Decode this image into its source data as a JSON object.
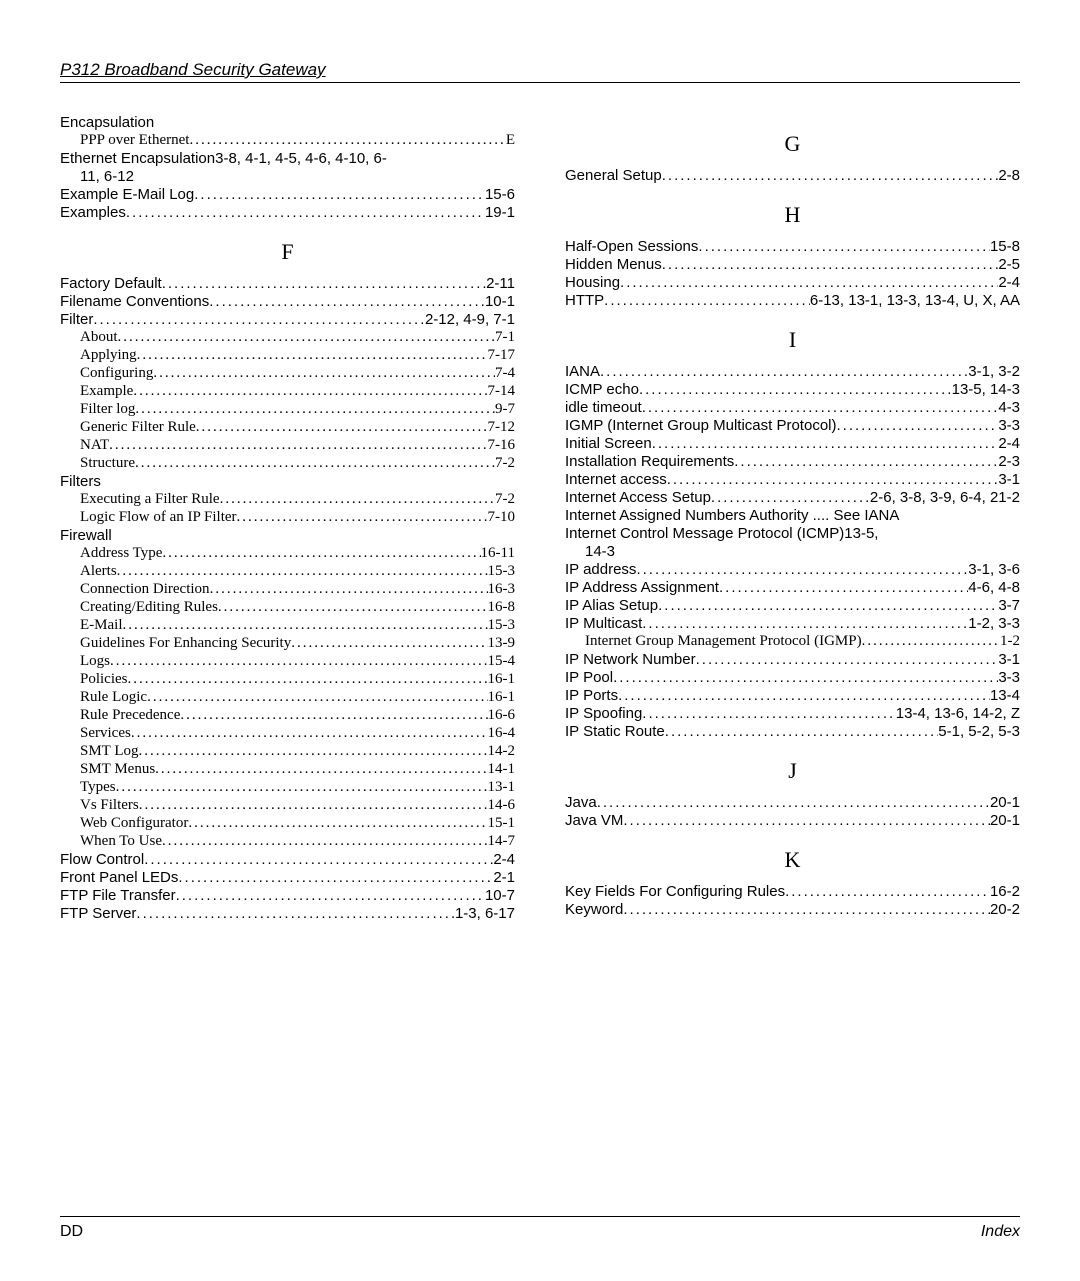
{
  "header": "P312  Broadband Security Gateway",
  "footer_left": "DD",
  "footer_right": "Index",
  "left_col": [
    {
      "type": "plain",
      "text": "Encapsulation"
    },
    {
      "type": "entry",
      "sub": true,
      "label": "PPP over Ethernet",
      "page": "E"
    },
    {
      "type": "plain",
      "text": "Ethernet Encapsulation3-8, 4-1, 4-5, 4-6, 4-10, 6-"
    },
    {
      "type": "plain",
      "sub": true,
      "text": "11, 6-12"
    },
    {
      "type": "entry",
      "label": "Example E-Mail Log",
      "page": "15-6"
    },
    {
      "type": "entry",
      "label": "Examples",
      "page": "19-1"
    },
    {
      "type": "letter",
      "text": "F"
    },
    {
      "type": "entry",
      "label": "Factory Default",
      "page": "2-11"
    },
    {
      "type": "entry",
      "label": "Filename Conventions",
      "page": "10-1"
    },
    {
      "type": "entry",
      "label": "Filter",
      "page": " 2-12, 4-9, 7-1"
    },
    {
      "type": "entry",
      "sub": true,
      "label": "About",
      "page": "7-1"
    },
    {
      "type": "entry",
      "sub": true,
      "label": "Applying",
      "page": "7-17"
    },
    {
      "type": "entry",
      "sub": true,
      "label": "Configuring",
      "page": "7-4"
    },
    {
      "type": "entry",
      "sub": true,
      "label": "Example",
      "page": "7-14"
    },
    {
      "type": "entry",
      "sub": true,
      "label": "Filter log",
      "page": "9-7"
    },
    {
      "type": "entry",
      "sub": true,
      "label": "Generic Filter Rule",
      "page": "7-12"
    },
    {
      "type": "entry",
      "sub": true,
      "label": "NAT",
      "page": "7-16"
    },
    {
      "type": "entry",
      "sub": true,
      "label": "Structure",
      "page": "7-2"
    },
    {
      "type": "plain",
      "text": "Filters"
    },
    {
      "type": "entry",
      "sub": true,
      "label": "Executing a Filter Rule",
      "page": "7-2"
    },
    {
      "type": "entry",
      "sub": true,
      "label": "Logic Flow of an IP Filter",
      "page": "7-10"
    },
    {
      "type": "plain",
      "text": "Firewall"
    },
    {
      "type": "entry",
      "sub": true,
      "label": "Address Type",
      "page": " 16-11"
    },
    {
      "type": "entry",
      "sub": true,
      "label": "Alerts",
      "page": " 15-3"
    },
    {
      "type": "entry",
      "sub": true,
      "label": "Connection Direction",
      "page": " 16-3"
    },
    {
      "type": "entry",
      "sub": true,
      "label": "Creating/Editing Rules",
      "page": " 16-8"
    },
    {
      "type": "entry",
      "sub": true,
      "label": "E-Mail",
      "page": " 15-3"
    },
    {
      "type": "entry",
      "sub": true,
      "label": "Guidelines For Enhancing Security",
      "page": " 13-9"
    },
    {
      "type": "entry",
      "sub": true,
      "label": "Logs",
      "page": " 15-4"
    },
    {
      "type": "entry",
      "sub": true,
      "label": "Policies",
      "page": " 16-1"
    },
    {
      "type": "entry",
      "sub": true,
      "label": "Rule Logic",
      "page": " 16-1"
    },
    {
      "type": "entry",
      "sub": true,
      "label": "Rule Precedence",
      "page": " 16-6"
    },
    {
      "type": "entry",
      "sub": true,
      "label": "Services",
      "page": " 16-4"
    },
    {
      "type": "entry",
      "sub": true,
      "label": "SMT Log",
      "page": " 14-2"
    },
    {
      "type": "entry",
      "sub": true,
      "label": "SMT Menus",
      "page": " 14-1"
    },
    {
      "type": "entry",
      "sub": true,
      "label": "Types",
      "page": " 13-1"
    },
    {
      "type": "entry",
      "sub": true,
      "label": "Vs Filters",
      "page": " 14-6"
    },
    {
      "type": "entry",
      "sub": true,
      "label": "Web Configurator",
      "page": " 15-1"
    },
    {
      "type": "entry",
      "sub": true,
      "label": "When To Use",
      "page": " 14-7"
    },
    {
      "type": "entry",
      "label": "Flow Control",
      "page": "2-4"
    },
    {
      "type": "entry",
      "label": "Front Panel LEDs",
      "page": "2-1"
    },
    {
      "type": "entry",
      "label": "FTP File Transfer",
      "page": "10-7"
    },
    {
      "type": "entry",
      "label": "FTP Server",
      "page": " 1-3, 6-17"
    }
  ],
  "right_col": [
    {
      "type": "letter",
      "text": "G"
    },
    {
      "type": "entry",
      "label": "General Setup",
      "page": "2-8"
    },
    {
      "type": "letter",
      "text": "H"
    },
    {
      "type": "entry",
      "label": "Half-Open Sessions",
      "page": "15-8"
    },
    {
      "type": "entry",
      "label": "Hidden Menus",
      "page": "2-5"
    },
    {
      "type": "entry",
      "label": "Housing",
      "page": "2-4"
    },
    {
      "type": "entry",
      "label": "HTTP",
      "page": "6-13, 13-1, 13-3, 13-4, U, X, AA"
    },
    {
      "type": "letter",
      "text": "I"
    },
    {
      "type": "entry",
      "label": "IANA",
      "page": "3-1, 3-2"
    },
    {
      "type": "entry",
      "label": "ICMP echo",
      "page": "13-5, 14-3"
    },
    {
      "type": "entry",
      "label": "idle timeout",
      "page": "4-3"
    },
    {
      "type": "entry",
      "label": "IGMP (Internet Group Multicast Protocol)",
      "page": "3-3"
    },
    {
      "type": "entry",
      "label": "Initial Screen",
      "page": "2-4"
    },
    {
      "type": "entry",
      "label": "Installation Requirements",
      "page": "2-3"
    },
    {
      "type": "entry",
      "label": "Internet access",
      "page": "3-1"
    },
    {
      "type": "entry",
      "label": "Internet Access Setup",
      "page": " 2-6, 3-8, 3-9, 6-4, 21-2"
    },
    {
      "type": "plain",
      "text": "Internet Assigned Numbers Authority .... See IANA"
    },
    {
      "type": "plain",
      "text": "Internet Control Message Protocol (ICMP)13-5,"
    },
    {
      "type": "plain",
      "sub": true,
      "text": "14-3"
    },
    {
      "type": "entry",
      "label": "IP address",
      "page": "3-1, 3-6"
    },
    {
      "type": "entry",
      "label": "IP Address  Assignment",
      "page": "4-6, 4-8"
    },
    {
      "type": "entry",
      "label": "IP Alias Setup",
      "page": "3-7"
    },
    {
      "type": "entry",
      "label": "IP Multicast",
      "page": "1-2, 3-3"
    },
    {
      "type": "entry",
      "sub": true,
      "label": "Internet Group Management Protocol (IGMP)",
      "page": " 1-2"
    },
    {
      "type": "entry",
      "label": "IP Network Number",
      "page": "3-1"
    },
    {
      "type": "entry",
      "label": "IP Pool",
      "page": "3-3"
    },
    {
      "type": "entry",
      "label": "IP Ports",
      "page": "13-4"
    },
    {
      "type": "entry",
      "label": "IP Spoofing",
      "page": " 13-4, 13-6, 14-2, Z"
    },
    {
      "type": "entry",
      "label": "IP Static Route",
      "page": "5-1, 5-2, 5-3"
    },
    {
      "type": "letter",
      "text": "J"
    },
    {
      "type": "entry",
      "label": "Java",
      "page": "20-1"
    },
    {
      "type": "entry",
      "label": "Java VM",
      "page": "20-1"
    },
    {
      "type": "letter",
      "text": "K"
    },
    {
      "type": "entry",
      "label": "Key Fields For Configuring Rules",
      "page": "16-2"
    },
    {
      "type": "entry",
      "label": "Keyword",
      "page": "20-2"
    }
  ]
}
